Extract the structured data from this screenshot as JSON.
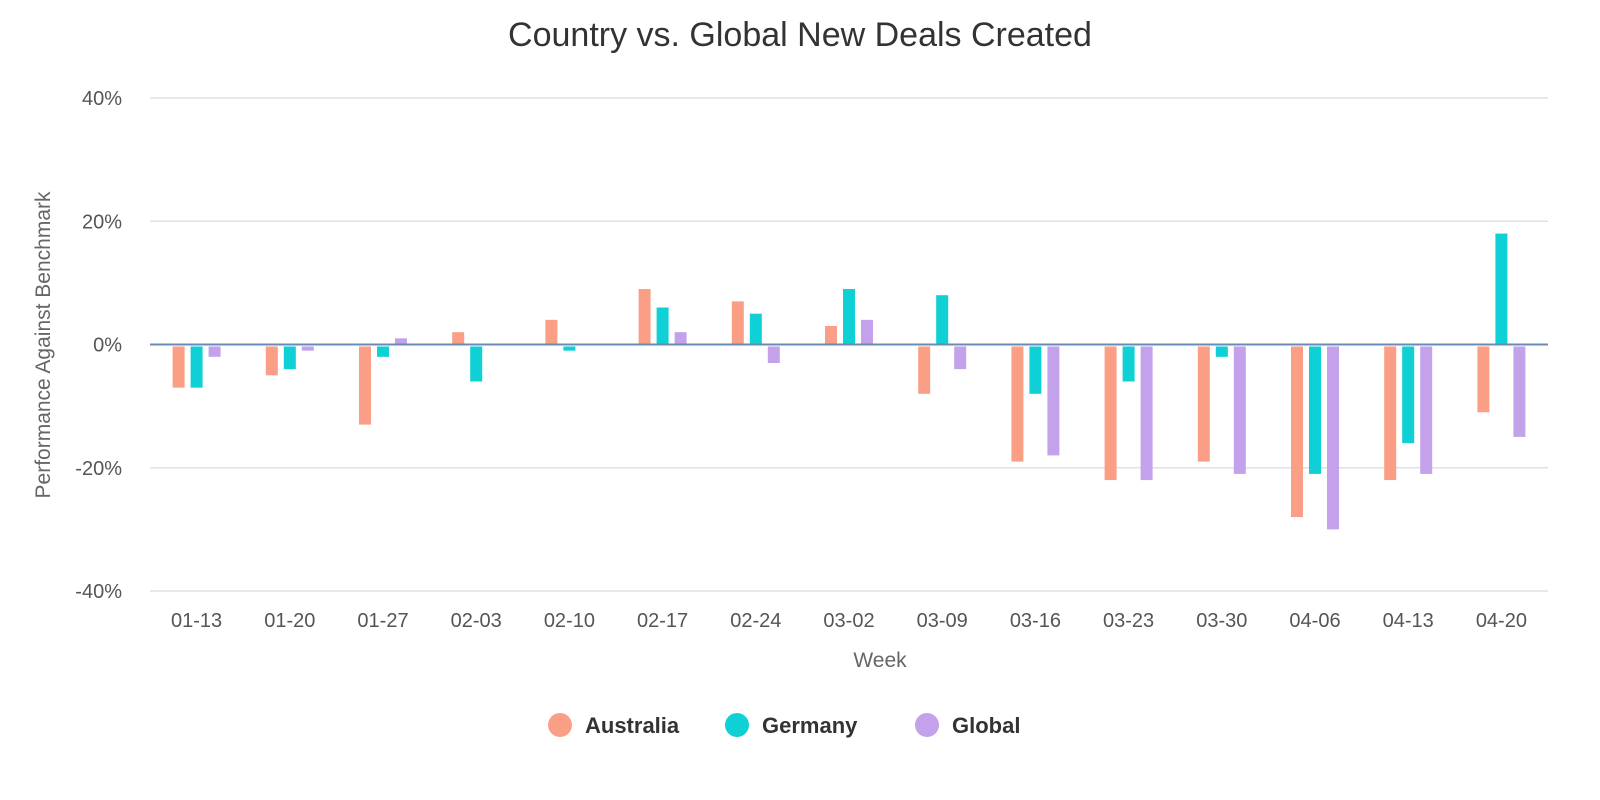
{
  "chart_data": {
    "type": "bar",
    "title": "Country vs. Global New Deals Created",
    "xlabel": "Week",
    "ylabel": "Performance Against Benchmark",
    "ylim": [
      -40,
      40
    ],
    "yticks": [
      40,
      20,
      0,
      -20,
      -40
    ],
    "ytick_labels": [
      "40%",
      "20%",
      "0%",
      "-20%",
      "-40%"
    ],
    "grid": true,
    "legend_position": "bottom-center",
    "categories": [
      "01-13",
      "01-20",
      "01-27",
      "02-03",
      "02-10",
      "02-17",
      "02-24",
      "03-02",
      "03-09",
      "03-16",
      "03-23",
      "03-30",
      "04-06",
      "04-13",
      "04-20"
    ],
    "series": [
      {
        "name": "Australia",
        "color": "#fa9f85",
        "values": [
          -7,
          -5,
          -13,
          2,
          4,
          9,
          7,
          3,
          -8,
          -19,
          -22,
          -19,
          -28,
          -22,
          -11
        ]
      },
      {
        "name": "Germany",
        "color": "#0fd0d4",
        "values": [
          -7,
          -4,
          -2,
          -6,
          -1,
          6,
          5,
          9,
          8,
          -8,
          -6,
          -2,
          -21,
          -16,
          18
        ]
      },
      {
        "name": "Global",
        "color": "#c3a2eb",
        "values": [
          -2,
          -1,
          1,
          0,
          0,
          2,
          -3,
          4,
          -4,
          -18,
          -22,
          -21,
          -30,
          -21,
          -15
        ]
      }
    ]
  }
}
